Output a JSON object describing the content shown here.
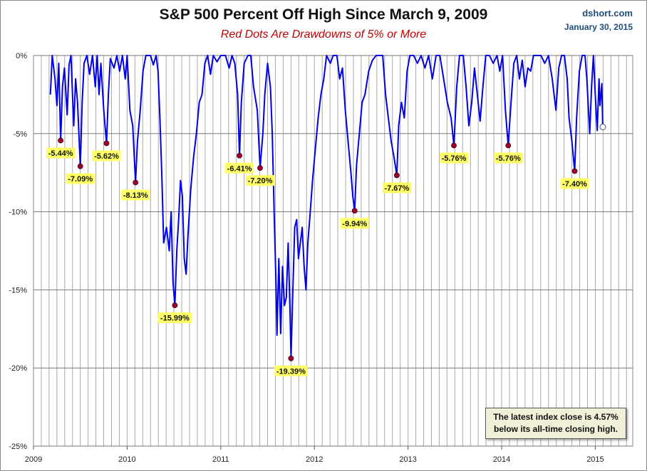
{
  "chart_data": {
    "type": "line",
    "title": "S&P 500 Percent Off High Since March 9, 2009",
    "subtitle": "Red Dots Are Drawdowns of 5% or More",
    "source": "dshort.com",
    "date": "January 30, 2015",
    "xlabel": "",
    "ylabel": "",
    "xlim": [
      2009.0,
      2015.4
    ],
    "ylim": [
      -25,
      0
    ],
    "yticks": [
      "0%",
      "-5%",
      "-10%",
      "-15%",
      "-20%",
      "-25%"
    ],
    "xticks": [
      "2009",
      "2010",
      "2011",
      "2012",
      "2013",
      "2014",
      "2015"
    ],
    "grid": true,
    "series": [
      {
        "name": "S&P 500 percent off high",
        "color": "#0000e6",
        "points": [
          [
            2009.18,
            -2.5
          ],
          [
            2009.2,
            0
          ],
          [
            2009.23,
            -1.5
          ],
          [
            2009.25,
            -3.2
          ],
          [
            2009.27,
            -0.5
          ],
          [
            2009.29,
            -5.44
          ],
          [
            2009.31,
            -2.0
          ],
          [
            2009.33,
            -0.8
          ],
          [
            2009.36,
            -3.8
          ],
          [
            2009.38,
            -0.6
          ],
          [
            2009.4,
            0
          ],
          [
            2009.43,
            -4.5
          ],
          [
            2009.45,
            -1.5
          ],
          [
            2009.47,
            -3.0
          ],
          [
            2009.5,
            -7.09
          ],
          [
            2009.52,
            -3.0
          ],
          [
            2009.54,
            -0.5
          ],
          [
            2009.57,
            0
          ],
          [
            2009.6,
            -1.2
          ],
          [
            2009.63,
            0
          ],
          [
            2009.66,
            -2.0
          ],
          [
            2009.68,
            0
          ],
          [
            2009.7,
            -2.5
          ],
          [
            2009.72,
            -0.5
          ],
          [
            2009.75,
            -3.5
          ],
          [
            2009.78,
            -5.62
          ],
          [
            2009.8,
            -2.5
          ],
          [
            2009.82,
            -0.2
          ],
          [
            2009.86,
            -0.8
          ],
          [
            2009.89,
            0
          ],
          [
            2009.92,
            -1.0
          ],
          [
            2009.95,
            0
          ],
          [
            2009.98,
            -1.5
          ],
          [
            2010.0,
            0
          ],
          [
            2010.03,
            -3.5
          ],
          [
            2010.06,
            -4.5
          ],
          [
            2010.09,
            -8.13
          ],
          [
            2010.11,
            -5.5
          ],
          [
            2010.14,
            -3.5
          ],
          [
            2010.17,
            -1.0
          ],
          [
            2010.2,
            0
          ],
          [
            2010.25,
            0
          ],
          [
            2010.28,
            -0.6
          ],
          [
            2010.31,
            0
          ],
          [
            2010.33,
            -1.0
          ],
          [
            2010.35,
            -4.0
          ],
          [
            2010.37,
            -7.5
          ],
          [
            2010.39,
            -12.0
          ],
          [
            2010.42,
            -11.0
          ],
          [
            2010.45,
            -12.5
          ],
          [
            2010.47,
            -10.0
          ],
          [
            2010.49,
            -14.5
          ],
          [
            2010.51,
            -15.99
          ],
          [
            2010.53,
            -12.5
          ],
          [
            2010.55,
            -10.5
          ],
          [
            2010.57,
            -8.0
          ],
          [
            2010.59,
            -9.0
          ],
          [
            2010.61,
            -13.0
          ],
          [
            2010.63,
            -14.0
          ],
          [
            2010.65,
            -11.5
          ],
          [
            2010.68,
            -8.5
          ],
          [
            2010.71,
            -6.5
          ],
          [
            2010.74,
            -5.0
          ],
          [
            2010.77,
            -3.0
          ],
          [
            2010.8,
            -2.5
          ],
          [
            2010.83,
            -0.5
          ],
          [
            2010.86,
            0
          ],
          [
            2010.89,
            -1.2
          ],
          [
            2010.92,
            0
          ],
          [
            2010.96,
            -0.4
          ],
          [
            2011.0,
            0
          ],
          [
            2011.05,
            0
          ],
          [
            2011.09,
            -0.8
          ],
          [
            2011.12,
            0
          ],
          [
            2011.15,
            -0.5
          ],
          [
            2011.18,
            -2.5
          ],
          [
            2011.2,
            -6.41
          ],
          [
            2011.22,
            -3.0
          ],
          [
            2011.25,
            -0.5
          ],
          [
            2011.29,
            0
          ],
          [
            2011.32,
            0
          ],
          [
            2011.35,
            -2.0
          ],
          [
            2011.39,
            -3.5
          ],
          [
            2011.42,
            -7.2
          ],
          [
            2011.45,
            -5.0
          ],
          [
            2011.47,
            -2.5
          ],
          [
            2011.5,
            -0.5
          ],
          [
            2011.53,
            -2.0
          ],
          [
            2011.55,
            -5.0
          ],
          [
            2011.57,
            -10.0
          ],
          [
            2011.59,
            -14.5
          ],
          [
            2011.6,
            -17.9
          ],
          [
            2011.62,
            -13.0
          ],
          [
            2011.64,
            -17.8
          ],
          [
            2011.66,
            -13.5
          ],
          [
            2011.68,
            -16.0
          ],
          [
            2011.7,
            -15.5
          ],
          [
            2011.72,
            -12.0
          ],
          [
            2011.74,
            -16.5
          ],
          [
            2011.75,
            -19.39
          ],
          [
            2011.77,
            -15.0
          ],
          [
            2011.79,
            -11.0
          ],
          [
            2011.81,
            -10.5
          ],
          [
            2011.83,
            -13.0
          ],
          [
            2011.85,
            -12.0
          ],
          [
            2011.87,
            -11.0
          ],
          [
            2011.89,
            -13.5
          ],
          [
            2011.91,
            -15.0
          ],
          [
            2011.93,
            -12.0
          ],
          [
            2011.95,
            -10.5
          ],
          [
            2011.98,
            -8.0
          ],
          [
            2012.01,
            -6.0
          ],
          [
            2012.04,
            -4.0
          ],
          [
            2012.07,
            -2.5
          ],
          [
            2012.1,
            -1.5
          ],
          [
            2012.13,
            0
          ],
          [
            2012.17,
            -0.5
          ],
          [
            2012.2,
            0
          ],
          [
            2012.24,
            0
          ],
          [
            2012.27,
            -1.5
          ],
          [
            2012.3,
            -0.8
          ],
          [
            2012.33,
            -3.5
          ],
          [
            2012.36,
            -5.5
          ],
          [
            2012.39,
            -7.5
          ],
          [
            2012.41,
            -9.0
          ],
          [
            2012.43,
            -9.94
          ],
          [
            2012.45,
            -7.0
          ],
          [
            2012.48,
            -5.0
          ],
          [
            2012.51,
            -3.0
          ],
          [
            2012.54,
            -2.5
          ],
          [
            2012.58,
            -1.0
          ],
          [
            2012.62,
            -0.3
          ],
          [
            2012.66,
            0
          ],
          [
            2012.7,
            0
          ],
          [
            2012.73,
            0
          ],
          [
            2012.76,
            -2.5
          ],
          [
            2012.79,
            -4.0
          ],
          [
            2012.82,
            -5.5
          ],
          [
            2012.85,
            -6.5
          ],
          [
            2012.88,
            -7.67
          ],
          [
            2012.9,
            -4.5
          ],
          [
            2012.93,
            -3.0
          ],
          [
            2012.96,
            -4.0
          ],
          [
            2012.99,
            -1.0
          ],
          [
            2013.02,
            0
          ],
          [
            2013.06,
            0
          ],
          [
            2013.1,
            -0.5
          ],
          [
            2013.14,
            0
          ],
          [
            2013.18,
            -0.8
          ],
          [
            2013.22,
            0
          ],
          [
            2013.26,
            -1.5
          ],
          [
            2013.3,
            0
          ],
          [
            2013.34,
            0
          ],
          [
            2013.38,
            -1.5
          ],
          [
            2013.42,
            -3.0
          ],
          [
            2013.46,
            -4.0
          ],
          [
            2013.49,
            -5.76
          ],
          [
            2013.52,
            -2.0
          ],
          [
            2013.55,
            0
          ],
          [
            2013.59,
            0
          ],
          [
            2013.62,
            -2.0
          ],
          [
            2013.65,
            -4.5
          ],
          [
            2013.68,
            -3.0
          ],
          [
            2013.71,
            -0.8
          ],
          [
            2013.74,
            -2.5
          ],
          [
            2013.77,
            -4.2
          ],
          [
            2013.8,
            -2.0
          ],
          [
            2013.83,
            0
          ],
          [
            2013.87,
            0
          ],
          [
            2013.91,
            -0.5
          ],
          [
            2013.95,
            0
          ],
          [
            2013.98,
            -1.0
          ],
          [
            2014.01,
            0
          ],
          [
            2014.04,
            -3.5
          ],
          [
            2014.07,
            -5.76
          ],
          [
            2014.1,
            -3.0
          ],
          [
            2014.13,
            -0.5
          ],
          [
            2014.16,
            0
          ],
          [
            2014.19,
            -1.5
          ],
          [
            2014.22,
            -0.3
          ],
          [
            2014.25,
            -2.0
          ],
          [
            2014.28,
            -0.8
          ],
          [
            2014.31,
            -1.0
          ],
          [
            2014.34,
            0
          ],
          [
            2014.38,
            0
          ],
          [
            2014.42,
            0
          ],
          [
            2014.46,
            -0.5
          ],
          [
            2014.5,
            0
          ],
          [
            2014.54,
            -1.5
          ],
          [
            2014.58,
            -3.5
          ],
          [
            2014.61,
            -0.8
          ],
          [
            2014.64,
            0
          ],
          [
            2014.67,
            0
          ],
          [
            2014.7,
            -1.5
          ],
          [
            2014.72,
            -4.0
          ],
          [
            2014.75,
            -5.5
          ],
          [
            2014.78,
            -7.4
          ],
          [
            2014.8,
            -4.0
          ],
          [
            2014.83,
            -1.0
          ],
          [
            2014.86,
            0
          ],
          [
            2014.89,
            0
          ],
          [
            2014.91,
            -1.5
          ],
          [
            2014.94,
            -5.0
          ],
          [
            2014.96,
            -2.0
          ],
          [
            2014.98,
            0
          ],
          [
            2015.0,
            -2.5
          ],
          [
            2015.02,
            -4.8
          ],
          [
            2015.04,
            -1.5
          ],
          [
            2015.05,
            -3.2
          ],
          [
            2015.07,
            -1.8
          ],
          [
            2015.08,
            -4.57
          ]
        ]
      }
    ],
    "annotations": [
      {
        "x": 2009.29,
        "y": -5.44,
        "label": "-5.44%"
      },
      {
        "x": 2009.5,
        "y": -7.09,
        "label": "-7.09%"
      },
      {
        "x": 2009.78,
        "y": -5.62,
        "label": "-5.62%"
      },
      {
        "x": 2010.09,
        "y": -8.13,
        "label": "-8.13%"
      },
      {
        "x": 2010.51,
        "y": -15.99,
        "label": "-15.99%"
      },
      {
        "x": 2011.2,
        "y": -6.41,
        "label": "-6.41%"
      },
      {
        "x": 2011.42,
        "y": -7.2,
        "label": "-7.20%"
      },
      {
        "x": 2011.75,
        "y": -19.39,
        "label": "-19.39%"
      },
      {
        "x": 2012.43,
        "y": -9.94,
        "label": "-9.94%"
      },
      {
        "x": 2012.88,
        "y": -7.67,
        "label": "-7.67%"
      },
      {
        "x": 2013.49,
        "y": -5.76,
        "label": "-5.76%"
      },
      {
        "x": 2014.07,
        "y": -5.76,
        "label": "-5.76%"
      },
      {
        "x": 2014.78,
        "y": -7.4,
        "label": "-7.40%"
      }
    ],
    "latest": {
      "x": 2015.08,
      "y": -4.57
    },
    "note_line1": "The latest index close is 4.57%",
    "note_line2": "below its all-time closing high."
  },
  "colors": {
    "line": "#0000e6",
    "drawdown_dot": "#a0002a",
    "label_bg": "#ffff66",
    "grid": "#a8a8a8"
  }
}
